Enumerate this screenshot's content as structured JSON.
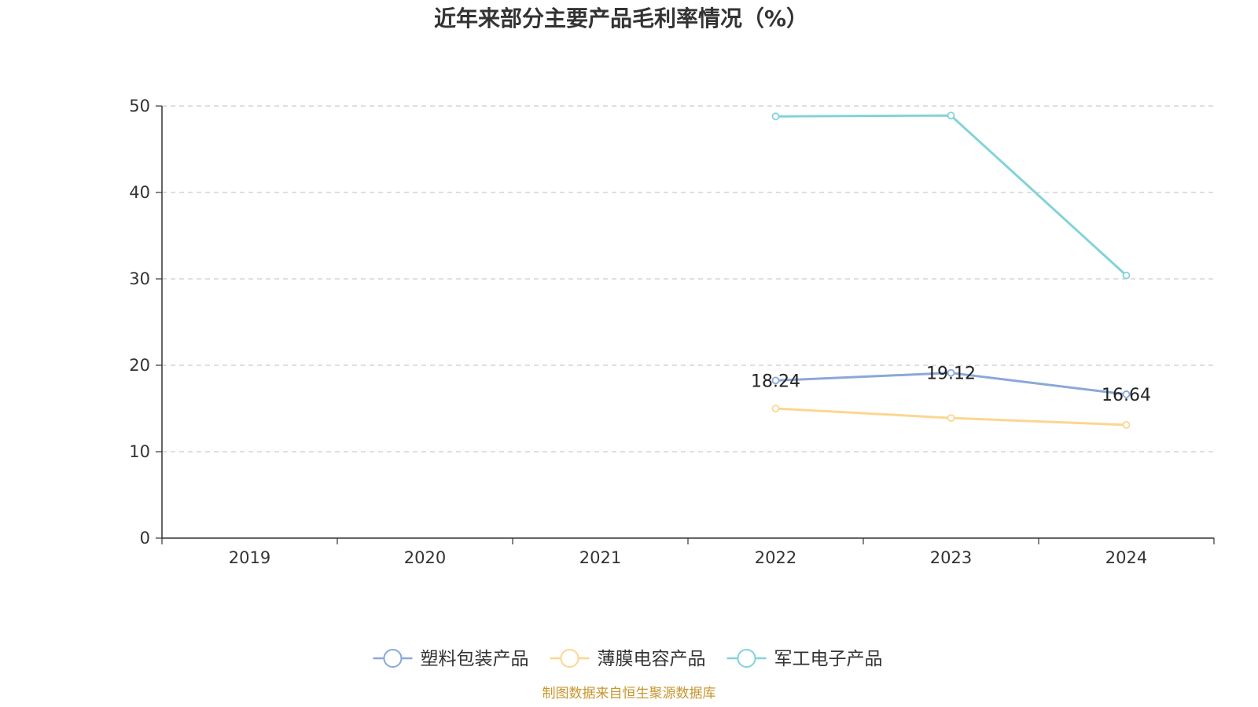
{
  "chart_data": {
    "type": "line",
    "title": "近年来部分主要产品毛利率情况（%）",
    "xlabel": "",
    "ylabel": "",
    "categories": [
      "2019",
      "2020",
      "2021",
      "2022",
      "2023",
      "2024"
    ],
    "ylim": [
      0,
      50
    ],
    "yticks": [
      0,
      10,
      20,
      30,
      40,
      50
    ],
    "grid": true,
    "legend_position": "bottom",
    "series": [
      {
        "name": "塑料包装产品",
        "color": "#8aa8d8",
        "values": [
          null,
          null,
          null,
          18.24,
          19.12,
          16.64
        ],
        "labels": [
          null,
          null,
          null,
          "18.24",
          "19.12",
          "16.64"
        ]
      },
      {
        "name": "薄膜电容产品",
        "color": "#fcd68f",
        "values": [
          null,
          null,
          null,
          15.0,
          13.9,
          13.1
        ],
        "labels": [
          null,
          null,
          null,
          null,
          null,
          null
        ]
      },
      {
        "name": "军工电子产品",
        "color": "#83d3d8",
        "values": [
          null,
          null,
          null,
          48.8,
          48.9,
          30.4
        ],
        "labels": [
          null,
          null,
          null,
          null,
          null,
          null
        ]
      }
    ]
  },
  "source_text": "制图数据来自恒生聚源数据库",
  "source_color": "#c8962e"
}
